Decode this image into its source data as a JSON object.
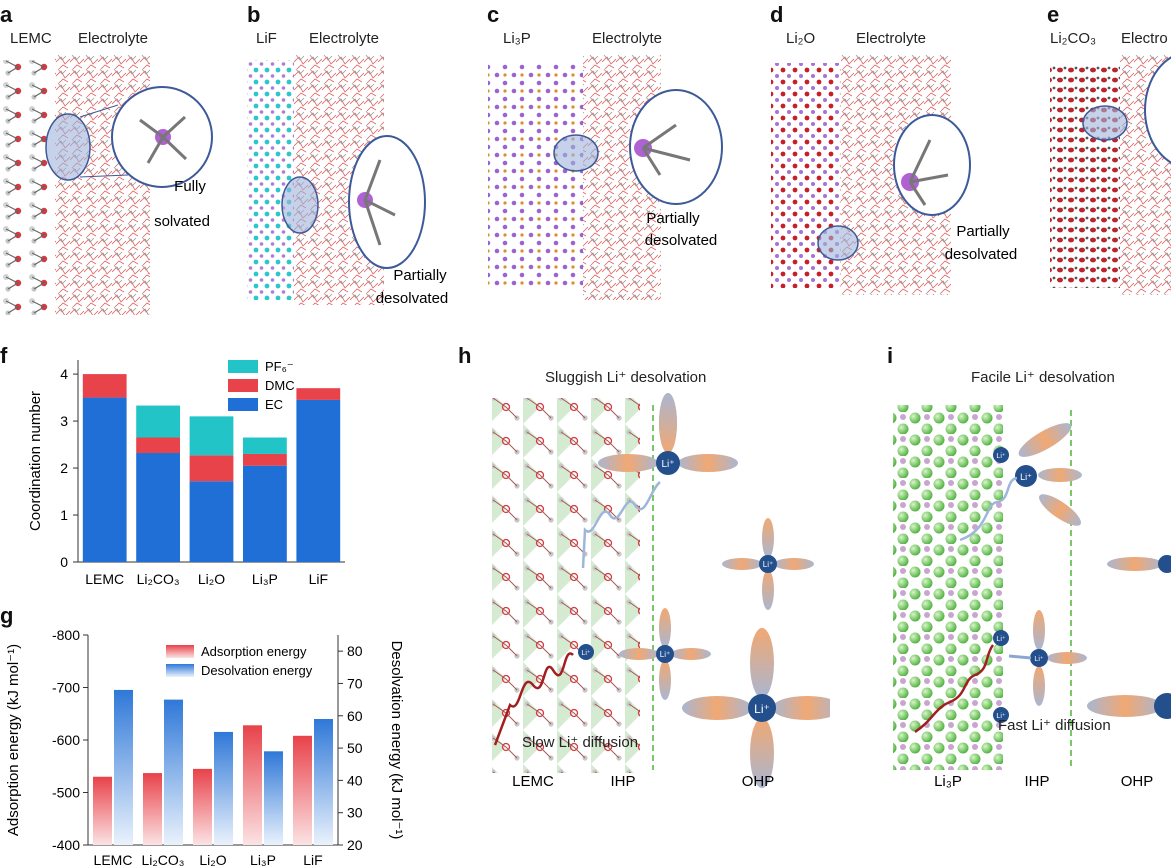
{
  "panels": {
    "a": {
      "letter": "a",
      "left": "LEMC",
      "right": "Electrolyte",
      "note1": "Fully",
      "note2": "solvated"
    },
    "b": {
      "letter": "b",
      "left": "LiF",
      "right": "Electrolyte",
      "note1": "Partially",
      "note2": "desolvated"
    },
    "c": {
      "letter": "c",
      "left": "Li₃P",
      "right": "Electrolyte",
      "note1": "Partially",
      "note2": "desolvated"
    },
    "d": {
      "letter": "d",
      "left": "Li₂O",
      "right": "Electrolyte",
      "note1": "Partially",
      "note2": "desolvated"
    },
    "e": {
      "letter": "e",
      "left": "Li₂CO₃",
      "right": "Electro"
    }
  },
  "f": {
    "letter": "f"
  },
  "g": {
    "letter": "g"
  },
  "h": {
    "letter": "h",
    "title": "Sluggish Li⁺ desolvation",
    "diffusion": "Slow Li⁺ diffusion",
    "bottom": [
      "LEMC",
      "IHP",
      "OHP"
    ],
    "ion": "Li⁺"
  },
  "i": {
    "letter": "i",
    "title": "Facile Li⁺ desolvation",
    "diffusion": "Fast Li⁺ diffusion",
    "bottom": [
      "Li₃P",
      "IHP",
      "OHP"
    ],
    "ion": "Li⁺"
  },
  "colors": {
    "ec": "#1f6fd6",
    "dmc": "#e8424a",
    "pf6": "#22c4c8",
    "adsorption": "#e8424a",
    "desolvation": "#3a7fd9"
  },
  "chart_data": [
    {
      "type": "bar",
      "stacked": true,
      "categories": [
        "LEMC",
        "Li₂CO₃",
        "Li₂O",
        "Li₃P",
        "LiF"
      ],
      "series": [
        {
          "name": "EC",
          "values": [
            3.5,
            2.32,
            1.72,
            2.05,
            3.45
          ]
        },
        {
          "name": "DMC",
          "values": [
            0.5,
            0.33,
            0.55,
            0.25,
            0.25
          ]
        },
        {
          "name": "PF₆⁻",
          "values": [
            0,
            0.68,
            0.83,
            0.35,
            0
          ]
        }
      ],
      "ylabel": "Coordination number",
      "ylim": [
        0,
        4.3
      ],
      "yticks": [
        "0",
        "1",
        "2",
        "3",
        "4"
      ],
      "legend": [
        "PF₆⁻",
        "DMC",
        "EC"
      ],
      "legend_position": "top-right"
    },
    {
      "type": "bar",
      "categories": [
        "LEMC",
        "Li₂CO₃",
        "Li₂O",
        "Li₃P",
        "LiF"
      ],
      "series": [
        {
          "name": "Adsorption energy",
          "axis": "left",
          "values": [
            -530,
            -537,
            -545,
            -628,
            -608
          ]
        },
        {
          "name": "Desolvation energy",
          "axis": "right",
          "values": [
            68,
            65,
            55,
            49,
            59
          ]
        }
      ],
      "ylabel": "Adsorption energy (kJ mol⁻¹)",
      "ylabel_right": "Desolvation energy (kJ mol⁻¹)",
      "ylim": [
        -400,
        -800
      ],
      "ylim_right": [
        20,
        85
      ],
      "yticks": [
        "-400",
        "-500",
        "-600",
        "-700",
        "-800"
      ],
      "yticks_right": [
        "20",
        "30",
        "40",
        "50",
        "60",
        "70",
        "80"
      ],
      "legend_position": "top-right"
    }
  ]
}
